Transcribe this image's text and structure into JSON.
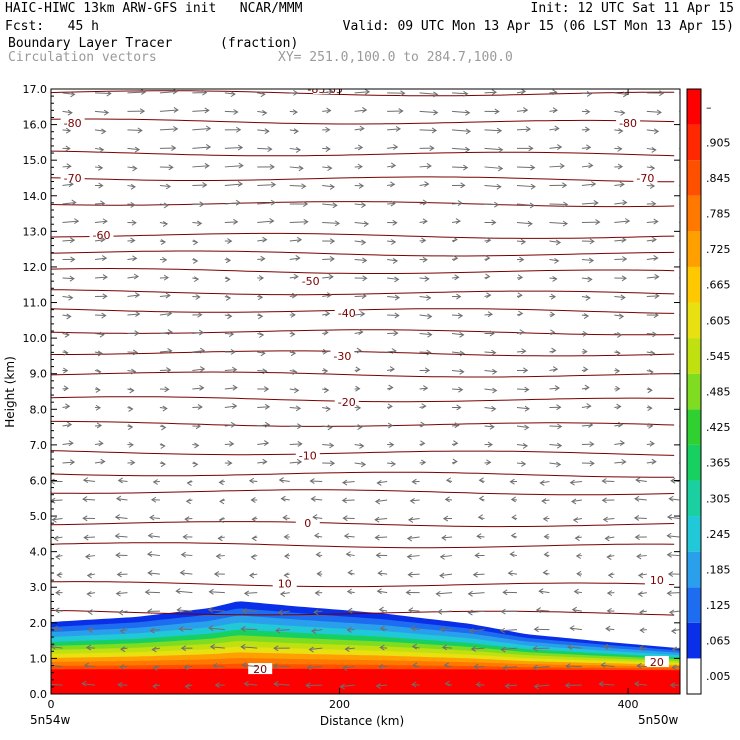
{
  "header": {
    "line1_left": "HAIC-HIWC 13km ARW-GFS init   NCAR/MMM",
    "line1_right": "Init: 12 UTC Sat 11 Apr 15",
    "line2_left": "Fcst:   45 h",
    "line2_right": "Valid: 09 UTC Mon 13 Apr 15 (06 LST Mon 13 Apr 15)",
    "field_name": "Boundary Layer Tracer",
    "field_units": "(fraction)",
    "vector_label": "Circulation vectors",
    "xy_label": "XY= 251.0,100.0 to 284.7,100.0"
  },
  "chart_data": {
    "type": "heatmap",
    "title": "Boundary Layer Tracer",
    "ylabel": "Height (km)",
    "xlabel": "Distance (km)",
    "xlim": [
      0,
      436
    ],
    "ylim": [
      0,
      17
    ],
    "x_ticks": [
      0,
      200,
      400
    ],
    "y_ticks": [
      "0.0",
      "1.0",
      "2.0",
      "3.0",
      "4.0",
      "5.0",
      "6.0",
      "7.0",
      "8.0",
      "9.0",
      "10.0",
      "11.0",
      "12.0",
      "13.0",
      "14.0",
      "15.0",
      "16.0",
      "17.0"
    ],
    "x_left_label": "5n54w",
    "x_right_label": "5n50w",
    "colorbar_labels": [
      ".005",
      ".065",
      ".125",
      ".185",
      ".245",
      ".305",
      ".365",
      ".425",
      ".485",
      ".545",
      ".605",
      ".665",
      ".725",
      ".785",
      ".845",
      ".905",
      "–"
    ],
    "colorbar_colors": [
      "#ffffff",
      "#0a2fe8",
      "#1e6cf0",
      "#2aa0ec",
      "#20c8d8",
      "#1ad0a0",
      "#18d060",
      "#30d030",
      "#80dc20",
      "#c0e010",
      "#e8e010",
      "#ffc800",
      "#ffa000",
      "#ff7800",
      "#ff5000",
      "#ff2800",
      "#ff0000"
    ],
    "tracer_top_km": [
      {
        "x": 0,
        "top": 2.05
      },
      {
        "x": 60,
        "top": 2.2
      },
      {
        "x": 110,
        "top": 2.45
      },
      {
        "x": 130,
        "top": 2.65
      },
      {
        "x": 170,
        "top": 2.5
      },
      {
        "x": 230,
        "top": 2.3
      },
      {
        "x": 290,
        "top": 2.0
      },
      {
        "x": 330,
        "top": 1.7
      },
      {
        "x": 380,
        "top": 1.5
      },
      {
        "x": 436,
        "top": 1.3
      }
    ],
    "temperature_contour_labels": [
      {
        "value": "-85.85",
        "x": 190,
        "y": 17.0
      },
      {
        "value": "-80",
        "x": 15,
        "y": 16.05
      },
      {
        "value": "-80",
        "x": 400,
        "y": 16.05
      },
      {
        "value": "-70",
        "x": 15,
        "y": 14.5
      },
      {
        "value": "-70",
        "x": 412,
        "y": 14.5
      },
      {
        "value": "-60",
        "x": 35,
        "y": 12.9
      },
      {
        "value": "-50",
        "x": 180,
        "y": 11.6
      },
      {
        "value": "-40",
        "x": 205,
        "y": 10.7
      },
      {
        "value": "-30",
        "x": 202,
        "y": 9.5
      },
      {
        "value": "-20",
        "x": 205,
        "y": 8.2
      },
      {
        "value": "-10",
        "x": 178,
        "y": 6.7
      },
      {
        "value": "0",
        "x": 178,
        "y": 4.8
      },
      {
        "value": "10",
        "x": 162,
        "y": 3.1
      },
      {
        "value": "10",
        "x": 420,
        "y": 3.2
      },
      {
        "value": "20",
        "x": 420,
        "y": 0.9
      },
      {
        "value": "20",
        "x": 145,
        "y": 0.7
      }
    ],
    "temperature_contour_levels_km": [
      16.9,
      16.1,
      15.2,
      14.5,
      13.8,
      12.9,
      12.4,
      11.9,
      11.3,
      10.8,
      10.2,
      9.6,
      9.0,
      8.3,
      7.6,
      6.8,
      6.2,
      5.7,
      4.8,
      4.2,
      3.1,
      2.3
    ]
  },
  "colors": {
    "contour": "#7a0000",
    "vector": "#6e6e6e",
    "frame": "#000000"
  }
}
